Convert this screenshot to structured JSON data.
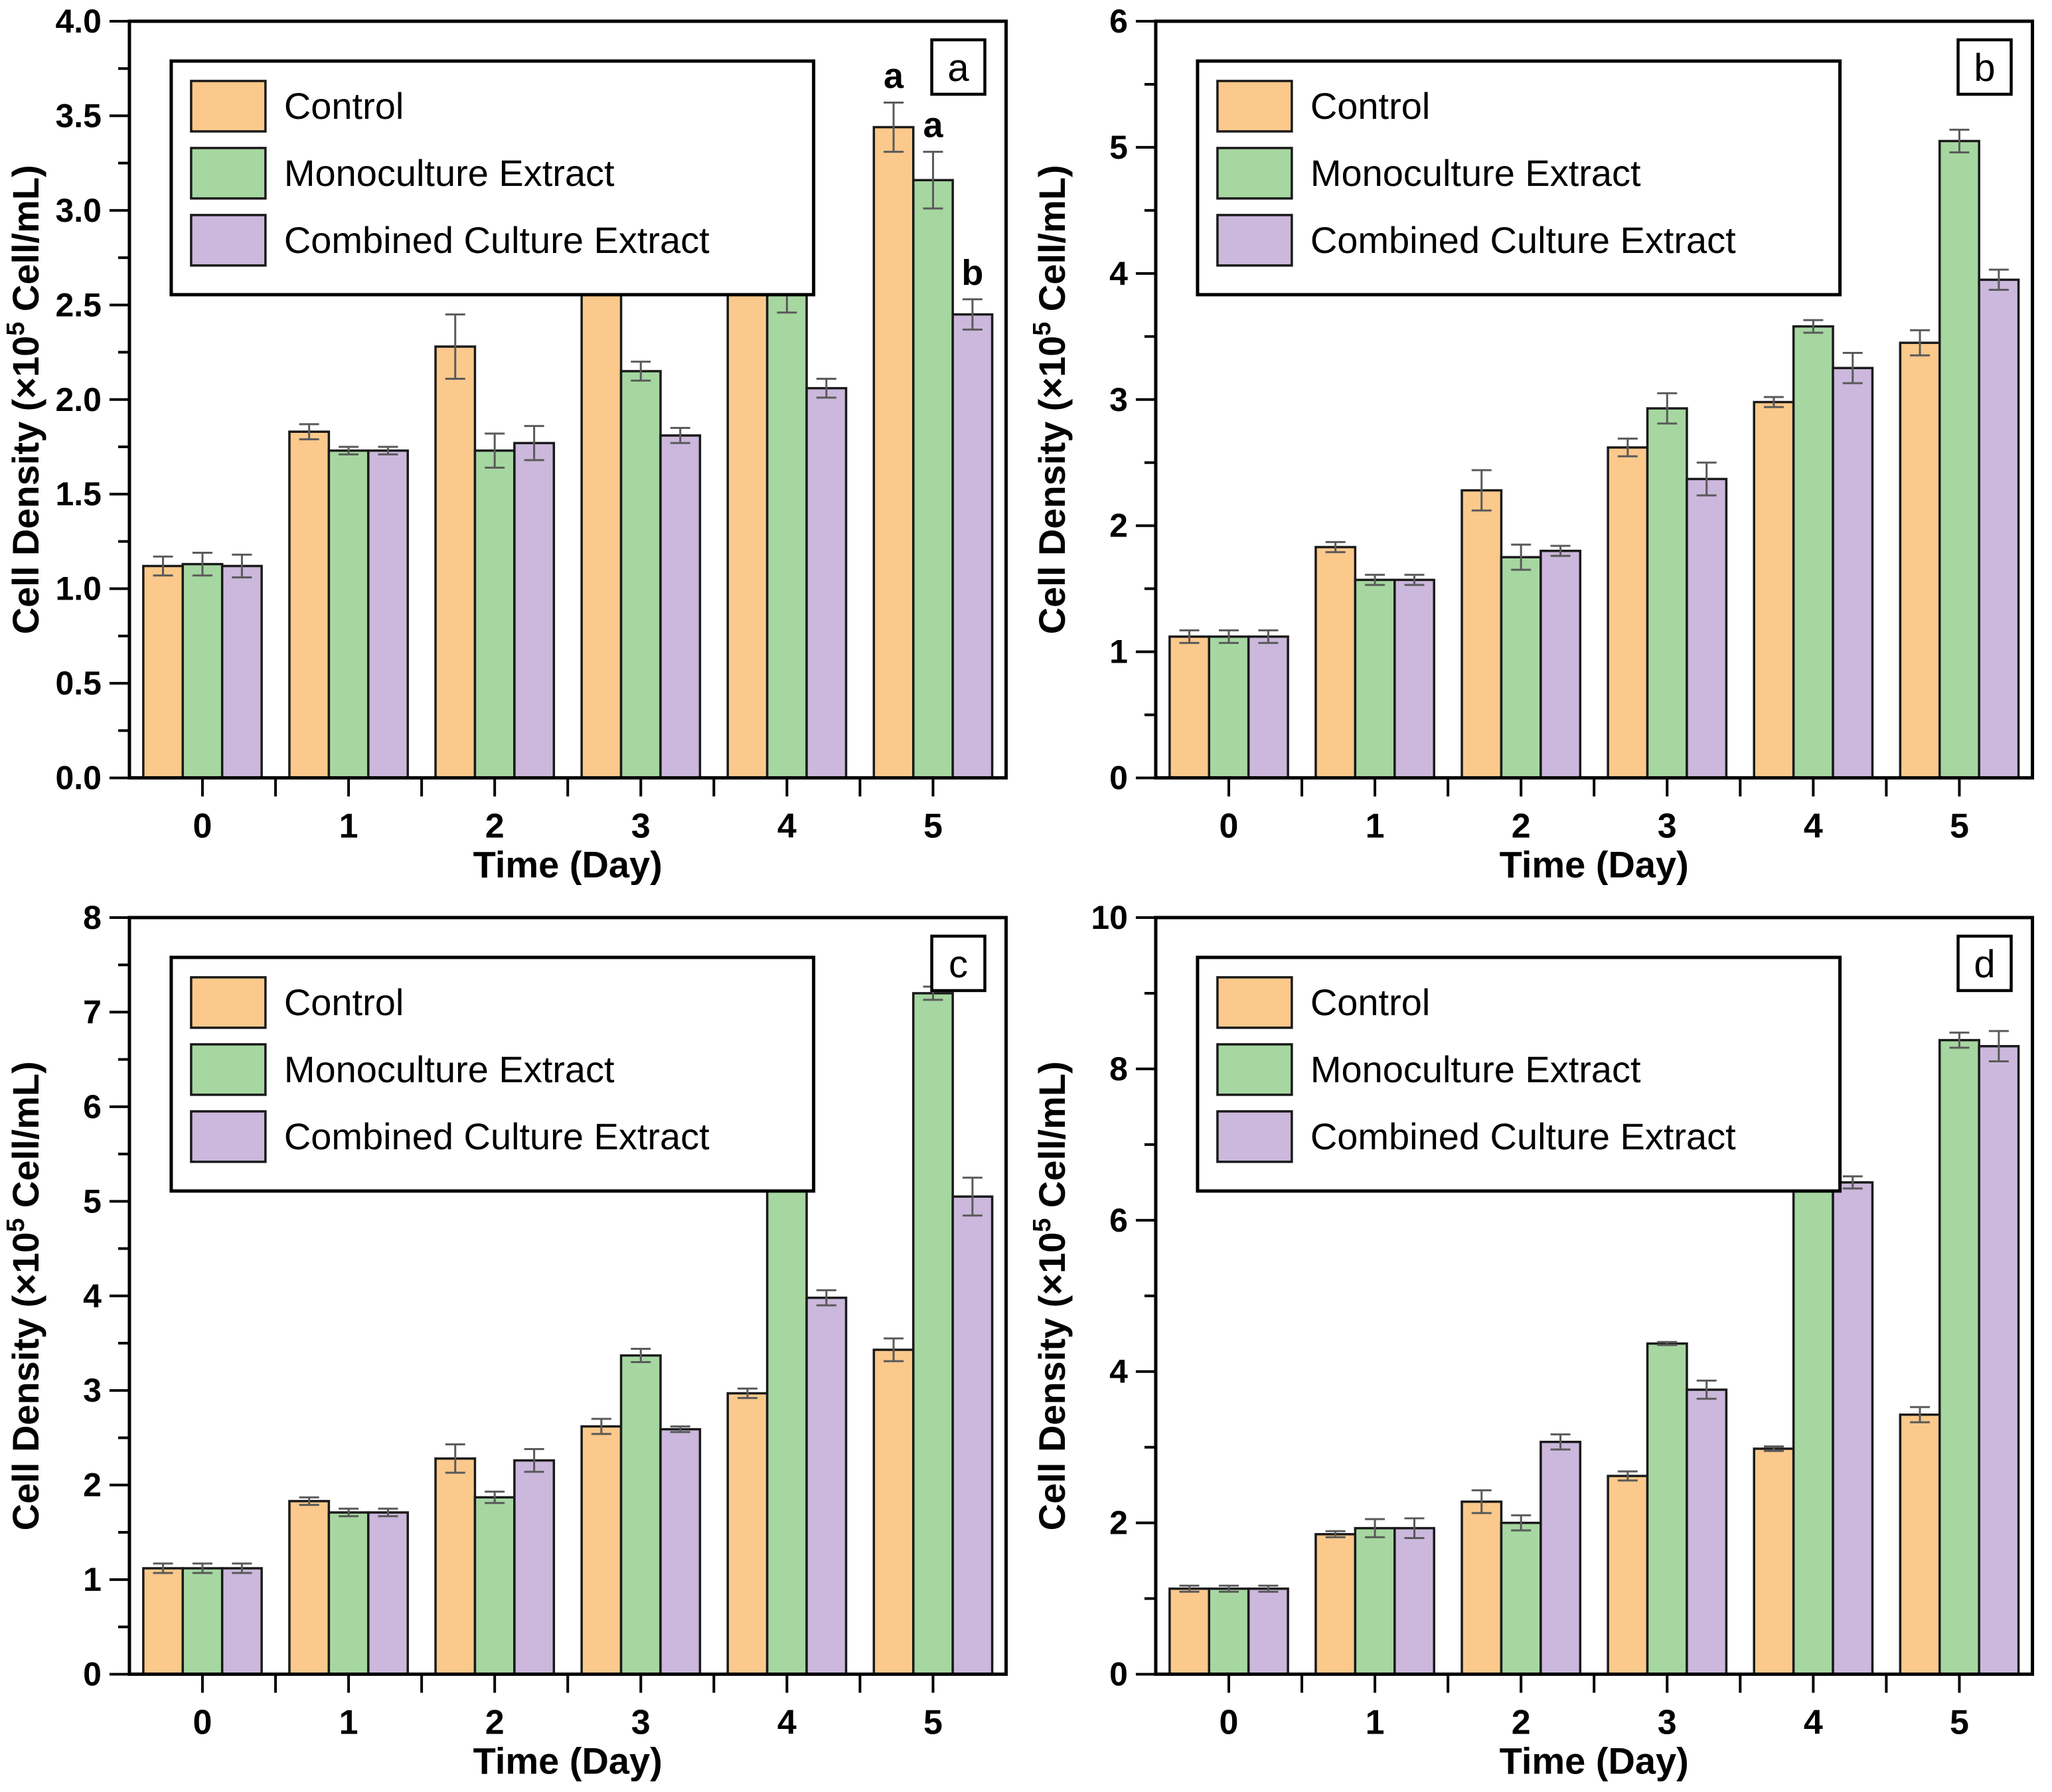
{
  "figure": {
    "background": "#ffffff",
    "xlabel": "Time (Day)",
    "ylabel_prefix": "Cell Density (×10",
    "ylabel_superscript": "5",
    "ylabel_suffix": " Cell/mL)",
    "legend_labels": [
      "Control",
      "Monoculture Extract",
      "Combined Culture Extract"
    ],
    "colors": {
      "control_fill": "#FBC98B",
      "monoculture_fill": "#A6D7A1",
      "combined_fill": "#CBB8DC",
      "bar_stroke": "#1a1a1a",
      "error_bar": "#5a5a5a",
      "axis": "#000000",
      "text": "#000000"
    }
  },
  "chart_data": [
    {
      "type": "bar",
      "panel_label": "a",
      "title": "",
      "xlabel": "Time (Day)",
      "ylabel": "Cell Density (×10⁵ Cell/mL)",
      "categories": [
        "0",
        "1",
        "2",
        "3",
        "4",
        "5"
      ],
      "ylim": [
        0,
        4
      ],
      "ytick_step": 0.5,
      "yminor_step": 0.25,
      "ytick_decimals": 1,
      "grid": false,
      "legend_position": "top-left",
      "series": [
        {
          "name": "Control",
          "values": [
            1.12,
            1.83,
            2.28,
            2.63,
            2.98,
            3.44
          ],
          "errors": [
            0.05,
            0.04,
            0.17,
            0.06,
            0.04,
            0.13
          ]
        },
        {
          "name": "Monoculture Extract",
          "values": [
            1.13,
            1.73,
            1.73,
            2.15,
            2.57,
            3.16
          ],
          "errors": [
            0.06,
            0.02,
            0.09,
            0.05,
            0.11,
            0.15
          ]
        },
        {
          "name": "Combined Culture Extract",
          "values": [
            1.12,
            1.73,
            1.77,
            1.81,
            2.06,
            2.45
          ],
          "errors": [
            0.06,
            0.02,
            0.09,
            0.04,
            0.05,
            0.08
          ]
        }
      ],
      "annotations": [
        {
          "category_index": 5,
          "series_index": 0,
          "text": "a"
        },
        {
          "category_index": 5,
          "series_index": 1,
          "text": "a"
        },
        {
          "category_index": 5,
          "series_index": 2,
          "text": "b"
        }
      ]
    },
    {
      "type": "bar",
      "panel_label": "b",
      "title": "",
      "xlabel": "Time (Day)",
      "ylabel": "Cell Density (×10⁵ Cell/mL)",
      "categories": [
        "0",
        "1",
        "2",
        "3",
        "4",
        "5"
      ],
      "ylim": [
        0,
        6
      ],
      "ytick_step": 1,
      "yminor_step": 0.5,
      "ytick_decimals": 0,
      "grid": false,
      "legend_position": "top-left",
      "series": [
        {
          "name": "Control",
          "values": [
            1.12,
            1.83,
            2.28,
            2.62,
            2.98,
            3.45
          ],
          "errors": [
            0.05,
            0.04,
            0.16,
            0.07,
            0.04,
            0.1
          ]
        },
        {
          "name": "Monoculture Extract",
          "values": [
            1.12,
            1.57,
            1.75,
            2.93,
            3.58,
            5.05
          ],
          "errors": [
            0.05,
            0.04,
            0.1,
            0.12,
            0.05,
            0.09
          ]
        },
        {
          "name": "Combined Culture Extract",
          "values": [
            1.12,
            1.57,
            1.8,
            2.37,
            3.25,
            3.95
          ],
          "errors": [
            0.05,
            0.04,
            0.04,
            0.13,
            0.12,
            0.08
          ]
        }
      ],
      "annotations": []
    },
    {
      "type": "bar",
      "panel_label": "c",
      "title": "",
      "xlabel": "Time (Day)",
      "ylabel": "Cell Density (×10⁵ Cell/mL)",
      "categories": [
        "0",
        "1",
        "2",
        "3",
        "4",
        "5"
      ],
      "ylim": [
        0,
        8
      ],
      "ytick_step": 1,
      "yminor_step": 0.5,
      "ytick_decimals": 0,
      "grid": false,
      "legend_position": "top-left",
      "series": [
        {
          "name": "Control",
          "values": [
            1.12,
            1.83,
            2.28,
            2.62,
            2.97,
            3.43
          ],
          "errors": [
            0.05,
            0.04,
            0.15,
            0.08,
            0.05,
            0.12
          ]
        },
        {
          "name": "Monoculture Extract",
          "values": [
            1.12,
            1.71,
            1.87,
            3.37,
            5.75,
            7.2
          ],
          "errors": [
            0.05,
            0.04,
            0.06,
            0.07,
            0.08,
            0.07
          ]
        },
        {
          "name": "Combined Culture Extract",
          "values": [
            1.12,
            1.71,
            2.26,
            2.59,
            3.98,
            5.05
          ],
          "errors": [
            0.05,
            0.04,
            0.12,
            0.03,
            0.08,
            0.2
          ]
        }
      ],
      "annotations": []
    },
    {
      "type": "bar",
      "panel_label": "d",
      "title": "",
      "xlabel": "Time (Day)",
      "ylabel": "Cell Density (×10⁵ Cell/mL)",
      "categories": [
        "0",
        "1",
        "2",
        "3",
        "4",
        "5"
      ],
      "ylim": [
        0,
        10
      ],
      "ytick_step": 2,
      "yminor_step": 1,
      "ytick_decimals": 0,
      "grid": false,
      "legend_position": "top-left",
      "series": [
        {
          "name": "Control",
          "values": [
            1.13,
            1.85,
            2.28,
            2.62,
            2.98,
            3.43
          ],
          "errors": [
            0.04,
            0.04,
            0.15,
            0.06,
            0.03,
            0.1
          ]
        },
        {
          "name": "Monoculture Extract",
          "values": [
            1.13,
            1.93,
            2.0,
            4.37,
            6.65,
            8.38
          ],
          "errors": [
            0.04,
            0.12,
            0.1,
            0.02,
            0.15,
            0.1
          ]
        },
        {
          "name": "Combined Culture Extract",
          "values": [
            1.13,
            1.93,
            3.07,
            3.76,
            6.5,
            8.3
          ],
          "errors": [
            0.04,
            0.13,
            0.1,
            0.12,
            0.08,
            0.2
          ]
        }
      ],
      "annotations": []
    }
  ]
}
